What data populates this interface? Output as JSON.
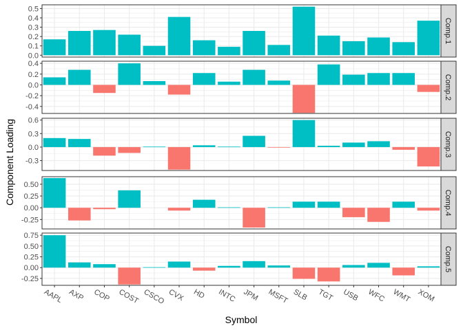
{
  "chart_data": {
    "type": "bar",
    "xlabel": "Symbol",
    "ylabel": "Component Loading",
    "categories": [
      "AAPL",
      "AXP",
      "COP",
      "COST",
      "CSCO",
      "CVX",
      "HD",
      "INTC",
      "JPM",
      "MSFT",
      "SLB",
      "TGT",
      "USB",
      "WFC",
      "WMT",
      "XOM"
    ],
    "colors": {
      "positive": "#00BFC4",
      "negative": "#F8766D",
      "strip_bg": "#D9D9D9",
      "grid": "#EBEBEB"
    },
    "grid": true,
    "legend": "none",
    "facets": [
      {
        "name": "Comp.1",
        "ylim": [
          -0.02,
          0.54
        ],
        "yticks": [
          0.0,
          0.1,
          0.2,
          0.3,
          0.4,
          0.5
        ],
        "tick_labels": [
          "0.0",
          "0.1",
          "0.2",
          "0.3",
          "0.4",
          "0.5"
        ],
        "values": [
          0.17,
          0.26,
          0.27,
          0.22,
          0.1,
          0.41,
          0.16,
          0.09,
          0.26,
          0.11,
          0.52,
          0.21,
          0.15,
          0.19,
          0.14,
          0.37
        ]
      },
      {
        "name": "Comp.2",
        "ylim": [
          -0.53,
          0.44
        ],
        "yticks": [
          -0.4,
          -0.2,
          0.0,
          0.2,
          0.4
        ],
        "tick_labels": [
          "-0.4",
          "-0.2",
          "0.0",
          "0.2",
          "0.4"
        ],
        "values": [
          0.14,
          0.28,
          -0.15,
          0.4,
          0.07,
          -0.18,
          0.22,
          0.06,
          0.28,
          0.08,
          -0.52,
          0.38,
          0.19,
          0.22,
          0.22,
          -0.13
        ]
      },
      {
        "name": "Comp.3",
        "ylim": [
          -0.52,
          0.64
        ],
        "yticks": [
          -0.3,
          0.0,
          0.3,
          0.6
        ],
        "tick_labels": [
          "-0.3",
          "0.0",
          "0.3",
          "0.6"
        ],
        "values": [
          0.2,
          0.18,
          -0.19,
          -0.13,
          0.01,
          -0.5,
          0.04,
          0.01,
          0.25,
          -0.01,
          0.6,
          0.03,
          0.1,
          0.13,
          -0.06,
          -0.43
        ]
      },
      {
        "name": "Comp.4",
        "ylim": [
          -0.45,
          0.66
        ],
        "yticks": [
          -0.25,
          0.0,
          0.25,
          0.5
        ],
        "tick_labels": [
          "-0.25",
          "0.00",
          "0.25",
          "0.50"
        ],
        "values": [
          0.63,
          -0.27,
          -0.03,
          0.37,
          0.0,
          -0.06,
          0.17,
          0.01,
          -0.42,
          0.01,
          0.13,
          0.13,
          -0.2,
          -0.3,
          0.13,
          -0.06
        ]
      },
      {
        "name": "Comp.5",
        "ylim": [
          -0.41,
          0.8
        ],
        "yticks": [
          -0.25,
          0.0,
          0.25,
          0.5,
          0.75
        ],
        "tick_labels": [
          "-0.25",
          "0.00",
          "0.25",
          "0.50",
          "0.75"
        ],
        "values": [
          0.75,
          0.12,
          0.08,
          -0.39,
          0.01,
          0.14,
          -0.07,
          0.04,
          0.15,
          0.05,
          -0.26,
          -0.32,
          0.06,
          0.11,
          -0.18,
          0.03
        ]
      }
    ]
  }
}
